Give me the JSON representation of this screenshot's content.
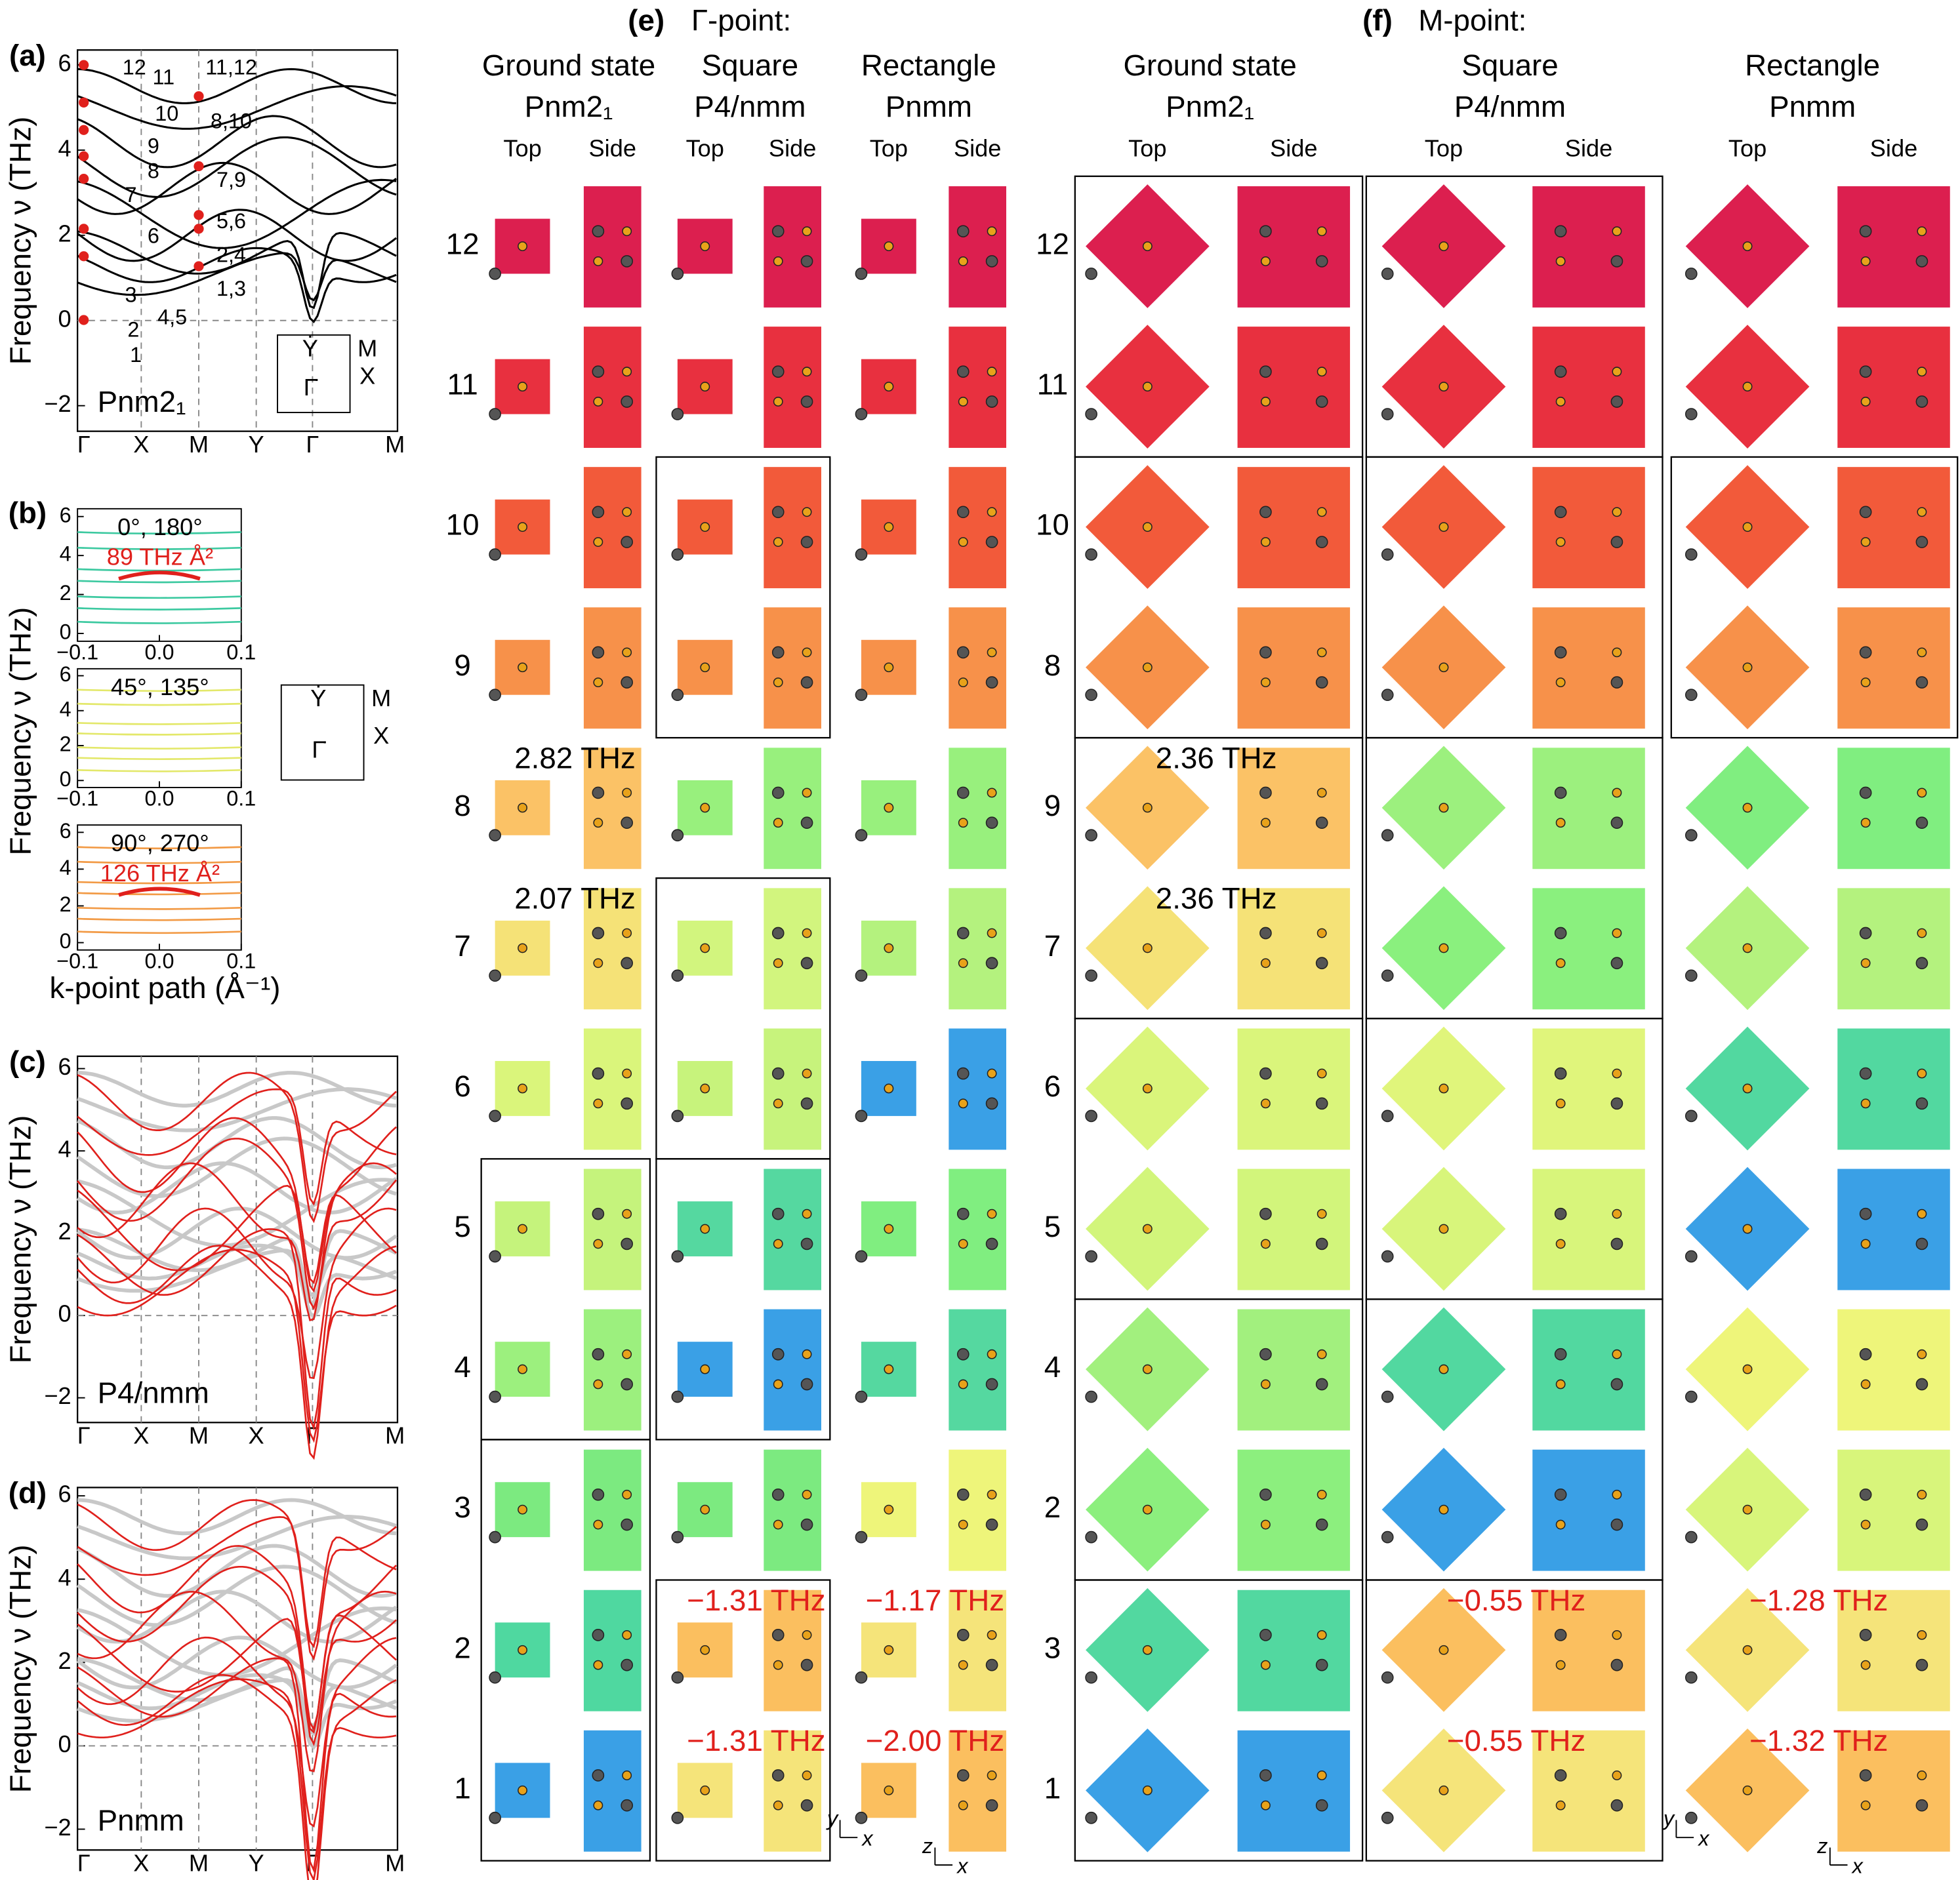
{
  "panel_a": {
    "label": "(a)",
    "ylabel": "Frequency ν (THz)",
    "name": "Pnm2₁",
    "ylim": [
      -2.6,
      6.35
    ],
    "yticks": [
      {
        "value": -2,
        "label": "−2"
      },
      0,
      2,
      4,
      6
    ],
    "xlabels": [
      "Γ",
      "X",
      "M",
      "Y",
      "Γ",
      "M"
    ],
    "gamma_modes": [
      "12",
      "11",
      "10",
      "9",
      "8",
      "7",
      "6",
      "4,5",
      "3",
      "2",
      "1"
    ],
    "m_modes": [
      "11,12",
      "8,10",
      "7,9",
      "5,6",
      "2,4",
      "1,3"
    ],
    "bz": {
      "y": "Ẏ",
      "m": "M",
      "x": "X",
      "g": "Γ̇"
    }
  },
  "panel_b": {
    "label": "(b)",
    "ylabel": "Frequency ν (THz)",
    "xlabel": "k-point path (Å⁻¹)",
    "xlim": [
      -0.1,
      0.1
    ],
    "xticks": [
      {
        "value": -0.1,
        "label": "−0.1"
      },
      {
        "value": 0,
        "label": "0.0"
      },
      0.1
    ],
    "ylim": [
      -0.4,
      6.4
    ],
    "yticks": [
      0,
      2,
      4,
      6
    ],
    "subplots": [
      {
        "angles": "0°, 180°",
        "note": "89 THz Å²",
        "color": "#3cc9a0"
      },
      {
        "angles": "45°, 135°",
        "color": "#e3e86a"
      },
      {
        "angles": "90°, 270°",
        "note": "126 THz Å²",
        "color": "#f29a45"
      }
    ],
    "bz": {
      "y": "Ẏ",
      "m": "M",
      "x": "X",
      "g": "Γ̇"
    }
  },
  "panel_c": {
    "label": "(c)",
    "ylabel": "Frequency ν (THz)",
    "name": "P4/nmm",
    "ylim": [
      -2.6,
      6.3
    ],
    "yticks": [
      {
        "value": -2,
        "label": "−2"
      },
      0,
      2,
      4,
      6
    ],
    "xlabels": [
      "Γ",
      "X",
      "M",
      "X",
      "Γ",
      "M"
    ]
  },
  "panel_d": {
    "label": "(d)",
    "ylabel": "Frequency ν (THz)",
    "name": "Pnmm",
    "ylim": [
      -2.5,
      6.2
    ],
    "yticks": [
      {
        "value": -2,
        "label": "−2"
      },
      0,
      2,
      4,
      6
    ],
    "xlabels": [
      "Γ",
      "X",
      "M",
      "Y",
      "Γ",
      "M"
    ]
  },
  "panel_e": {
    "label": "(e)",
    "title": "Γ-point:",
    "columns": [
      {
        "name": "Ground state",
        "group": "Pnm2₁",
        "top": "Top",
        "side": "Side"
      },
      {
        "name": "Square",
        "group": "P4/nmm",
        "top": "Top",
        "side": "Side"
      },
      {
        "name": "Rectangle",
        "group": "Pnmm",
        "top": "Top",
        "side": "Side"
      }
    ],
    "rows": [
      {
        "mode": "12",
        "cells": [
          {
            "color": "#dc1f4f"
          },
          {
            "color": "#dc1f4f"
          },
          {
            "color": "#dc1f4f"
          }
        ]
      },
      {
        "mode": "11",
        "cells": [
          {
            "color": "#e8303f"
          },
          {
            "color": "#e8303f"
          },
          {
            "color": "#e8303f"
          }
        ]
      },
      {
        "mode": "10",
        "cells": [
          {
            "color": "#f25a3a"
          },
          {
            "color": "#f25a3a"
          },
          {
            "color": "#f25a3a"
          }
        ]
      },
      {
        "mode": "9",
        "cells": [
          {
            "color": "#f7914a"
          },
          {
            "color": "#f7914a"
          },
          {
            "color": "#f7914a"
          }
        ]
      },
      {
        "mode": "8",
        "cells": [
          {
            "color": "#fbc266",
            "note": {
              "text": "2.82 THz",
              "color": "#000000"
            }
          },
          {
            "color": "#98f07d"
          },
          {
            "color": "#98f07d"
          }
        ]
      },
      {
        "mode": "7",
        "cells": [
          {
            "color": "#f5e277",
            "note": {
              "text": "2.07 THz",
              "color": "#000000"
            }
          },
          {
            "color": "#d2f57e"
          },
          {
            "color": "#b4f27e"
          }
        ]
      },
      {
        "mode": "6",
        "cells": [
          {
            "color": "#daf57b"
          },
          {
            "color": "#c7f37c"
          },
          {
            "color": "#3aa0e6"
          }
        ]
      },
      {
        "mode": "5",
        "cells": [
          {
            "color": "#c5f37c"
          },
          {
            "color": "#55d8a0"
          },
          {
            "color": "#80ee80"
          }
        ]
      },
      {
        "mode": "4",
        "cells": [
          {
            "color": "#9cf07e"
          },
          {
            "color": "#3aa0e6"
          },
          {
            "color": "#55d8a0"
          }
        ]
      },
      {
        "mode": "3",
        "cells": [
          {
            "color": "#7cea80"
          },
          {
            "color": "#7cea80"
          },
          {
            "color": "#eef57a"
          }
        ]
      },
      {
        "mode": "2",
        "cells": [
          {
            "color": "#4fd8a0"
          },
          {
            "color": "#fbbf5f",
            "note": {
              "text": "−1.31 THz",
              "color": "#e0201c"
            }
          },
          {
            "color": "#f5e47a",
            "note": {
              "text": "−1.17 THz",
              "color": "#e0201c"
            }
          }
        ]
      },
      {
        "mode": "1",
        "cells": [
          {
            "color": "#3aa0e6"
          },
          {
            "color": "#f5e47a",
            "note": {
              "text": "−1.31 THz",
              "color": "#e0201c"
            }
          },
          {
            "color": "#fbbf5f",
            "note": {
              "text": "−2.00 THz",
              "color": "#e0201c"
            }
          }
        ]
      }
    ],
    "axes_top": {
      "v": "y",
      "h": "x"
    },
    "axes_side": {
      "v": "z",
      "h": "x"
    }
  },
  "panel_f": {
    "label": "(f)",
    "title": "M-point:",
    "columns": [
      {
        "name": "Ground state",
        "group": "Pnm2₁",
        "top": "Top",
        "side": "Side"
      },
      {
        "name": "Square",
        "group": "P4/nmm",
        "top": "Top",
        "side": "Side"
      },
      {
        "name": "Rectangle",
        "group": "Pnmm",
        "top": "Top",
        "side": "Side"
      }
    ],
    "rows": [
      {
        "mode": "12",
        "cells": [
          {
            "color": "#dc1f4f"
          },
          {
            "color": "#dc1f4f"
          },
          {
            "color": "#dc1f4f"
          }
        ]
      },
      {
        "mode": "11",
        "cells": [
          {
            "color": "#e8303f"
          },
          {
            "color": "#e8303f"
          },
          {
            "color": "#e8303f"
          }
        ]
      },
      {
        "mode": "10",
        "cells": [
          {
            "color": "#f25a3a"
          },
          {
            "color": "#f25a3a"
          },
          {
            "color": "#f25a3a"
          }
        ]
      },
      {
        "mode": "8",
        "cells": [
          {
            "color": "#f7914a"
          },
          {
            "color": "#f7914a"
          },
          {
            "color": "#f7914a"
          }
        ]
      },
      {
        "mode": "9",
        "cells": [
          {
            "color": "#fbc266",
            "note": {
              "text": "2.36 THz",
              "color": "#000000"
            }
          },
          {
            "color": "#9cf07e"
          },
          {
            "color": "#80ee80"
          }
        ]
      },
      {
        "mode": "7",
        "cells": [
          {
            "color": "#f5e277",
            "note": {
              "text": "2.36 THz",
              "color": "#000000"
            }
          },
          {
            "color": "#8af07e"
          },
          {
            "color": "#b4f27e"
          }
        ]
      },
      {
        "mode": "6",
        "cells": [
          {
            "color": "#daf57b"
          },
          {
            "color": "#e0f57b"
          },
          {
            "color": "#52d8a0"
          }
        ]
      },
      {
        "mode": "5",
        "cells": [
          {
            "color": "#d2f57b"
          },
          {
            "color": "#d8f57b"
          },
          {
            "color": "#3aa0e6"
          }
        ]
      },
      {
        "mode": "4",
        "cells": [
          {
            "color": "#a2f07e"
          },
          {
            "color": "#52d8a0"
          },
          {
            "color": "#eef57a"
          }
        ]
      },
      {
        "mode": "2",
        "cells": [
          {
            "color": "#8cef7e"
          },
          {
            "color": "#3aa0e6"
          },
          {
            "color": "#d8f57b"
          }
        ]
      },
      {
        "mode": "3",
        "cells": [
          {
            "color": "#52d8a0"
          },
          {
            "color": "#fbbf5f",
            "note": {
              "text": "−0.55 THz",
              "color": "#e0201c"
            }
          },
          {
            "color": "#f5e47a",
            "note": {
              "text": "−1.28 THz",
              "color": "#e0201c"
            }
          }
        ]
      },
      {
        "mode": "1",
        "cells": [
          {
            "color": "#3aa0e6"
          },
          {
            "color": "#f5e47a",
            "note": {
              "text": "−0.55 THz",
              "color": "#e0201c"
            }
          },
          {
            "color": "#fbbf5f",
            "note": {
              "text": "−1.32 THz",
              "color": "#e0201c"
            }
          }
        ]
      }
    ],
    "axes_top": {
      "v": "y",
      "h": "x"
    },
    "axes_side": {
      "v": "z",
      "h": "x"
    }
  }
}
